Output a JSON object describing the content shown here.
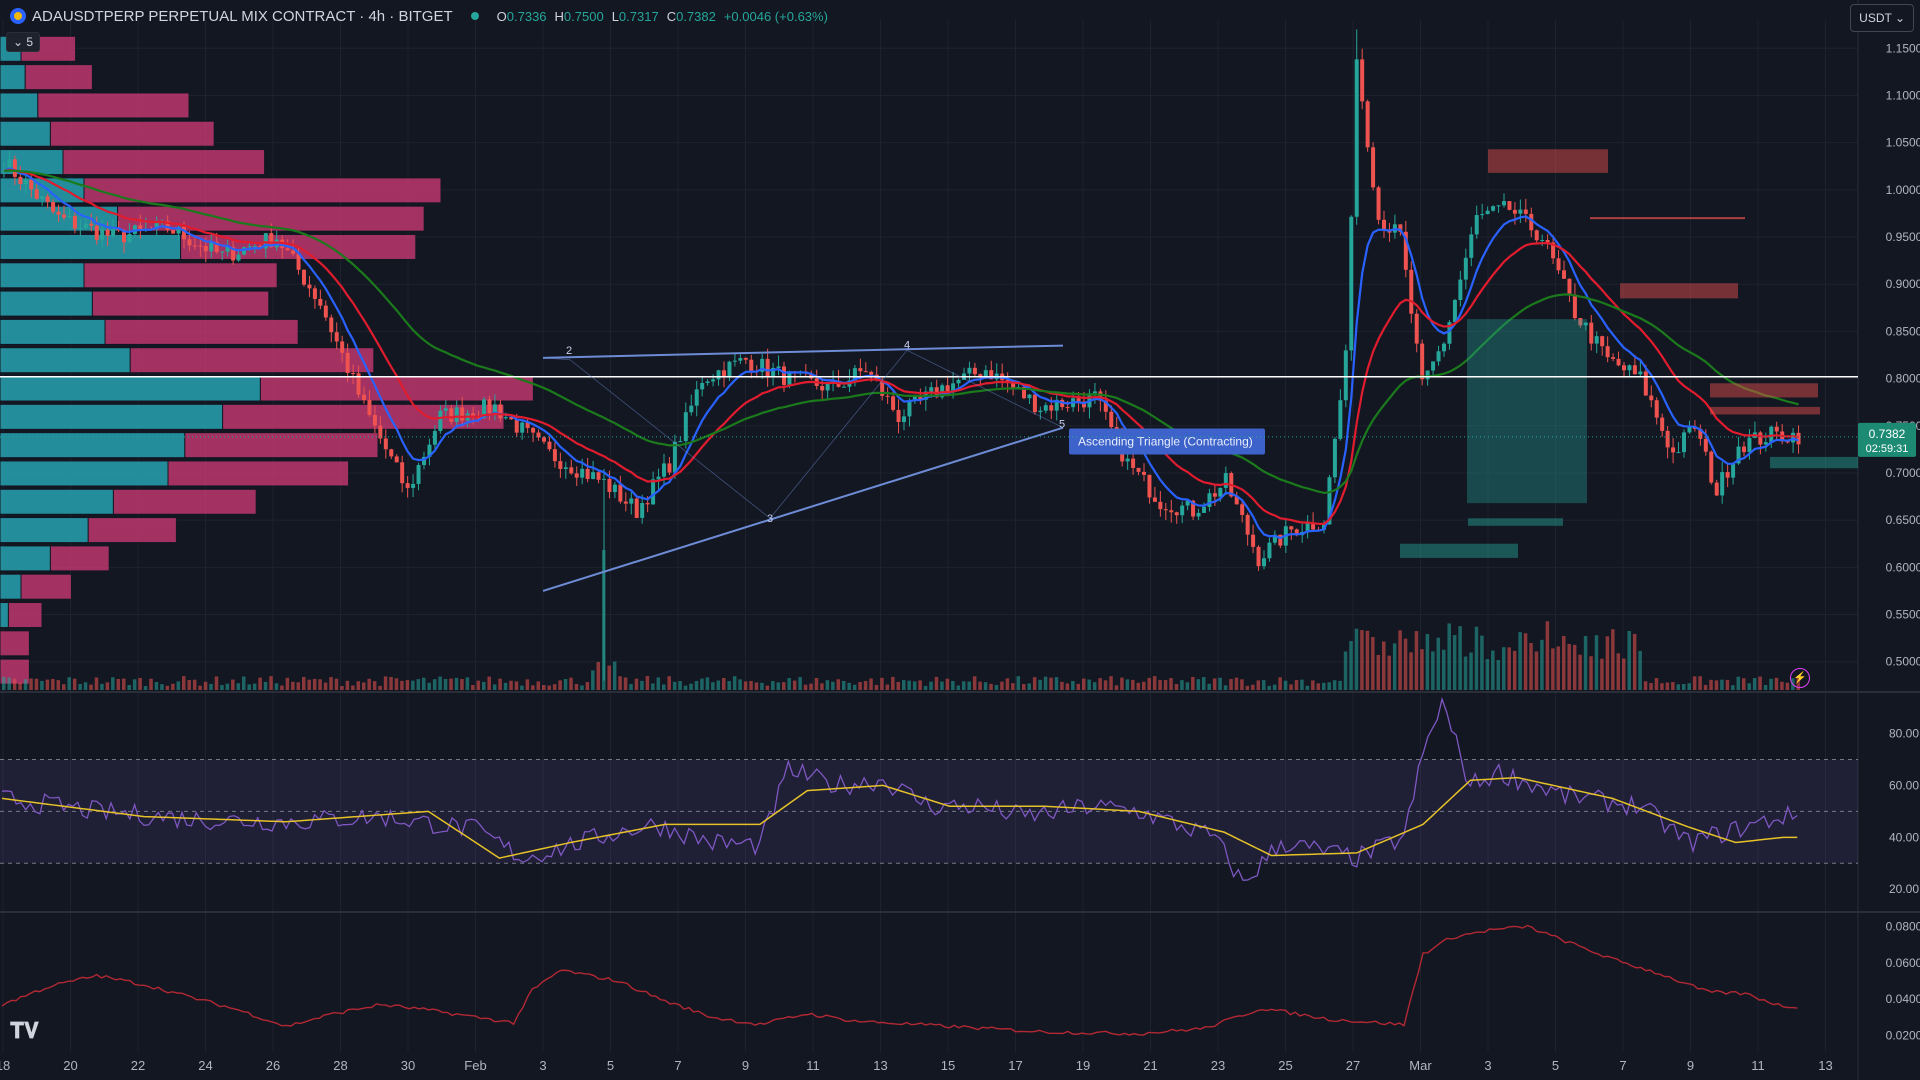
{
  "header": {
    "symbol": "ADAUSDTPERP PERPETUAL MIX CONTRACT · 4h · BITGET",
    "open_label": "O",
    "open": "0.7336",
    "high_label": "H",
    "high": "0.7500",
    "low_label": "L",
    "low": "0.7317",
    "close_label": "C",
    "close": "0.7382",
    "change": "+0.0046 (+0.63%)",
    "collapse_label": "5",
    "currency": "USDT"
  },
  "last_price": {
    "value": "0.7382",
    "countdown": "02:59:31"
  },
  "pattern_label": "Ascending Triangle (Contracting)",
  "pattern_points": [
    "2",
    "3",
    "4",
    "5"
  ],
  "colors": {
    "background": "#131722",
    "up": "#26a69a",
    "down": "#ef5350",
    "ema_fast": "#2962ff",
    "ema_mid": "#e01c2e",
    "ema_slow": "#1b7a1b",
    "rsi": "#7e57c2",
    "rsi_ma": "#e6c229",
    "atr": "#b22833",
    "triangle": "#6e8bd6",
    "level": "#ffffff"
  },
  "chart_data": [
    {
      "type": "candlestick",
      "title": "ADAUSDTPERP PERPETUAL MIX CONTRACT · 4h · BITGET",
      "ylim": [
        0.47,
        1.18
      ],
      "yticks": [
        "1.1500",
        "1.1000",
        "1.0500",
        "1.0000",
        "0.9500",
        "0.9000",
        "0.8500",
        "0.8000",
        "0.7500",
        "0.7000",
        "0.6500",
        "0.6000",
        "0.5500",
        "0.5000"
      ],
      "xticks": [
        "18",
        "20",
        "22",
        "24",
        "26",
        "28",
        "30",
        "Feb",
        "3",
        "5",
        "7",
        "9",
        "11",
        "13",
        "15",
        "17",
        "19",
        "21",
        "23",
        "25",
        "27",
        "Mar",
        "3",
        "5",
        "7",
        "9",
        "11",
        "13"
      ],
      "grid": true,
      "horizontal_line": 0.802,
      "close_key_points": [
        [
          0,
          1.03
        ],
        [
          10,
          0.97
        ],
        [
          20,
          0.95
        ],
        [
          30,
          0.96
        ],
        [
          40,
          0.93
        ],
        [
          50,
          0.95
        ],
        [
          58,
          0.88
        ],
        [
          66,
          0.77
        ],
        [
          74,
          0.68
        ],
        [
          80,
          0.76
        ],
        [
          90,
          0.77
        ],
        [
          100,
          0.72
        ],
        [
          110,
          0.69
        ],
        [
          116,
          0.66
        ],
        [
          122,
          0.71
        ],
        [
          128,
          0.8
        ],
        [
          136,
          0.82
        ],
        [
          144,
          0.8
        ],
        [
          152,
          0.79
        ],
        [
          158,
          0.81
        ],
        [
          164,
          0.76
        ],
        [
          172,
          0.79
        ],
        [
          180,
          0.81
        ],
        [
          190,
          0.77
        ],
        [
          200,
          0.78
        ],
        [
          206,
          0.71
        ],
        [
          212,
          0.67
        ],
        [
          218,
          0.66
        ],
        [
          224,
          0.69
        ],
        [
          230,
          0.61
        ],
        [
          236,
          0.64
        ],
        [
          242,
          0.65
        ],
        [
          246,
          0.82
        ],
        [
          248,
          1.14
        ],
        [
          252,
          0.97
        ],
        [
          256,
          0.95
        ],
        [
          260,
          0.79
        ],
        [
          264,
          0.84
        ],
        [
          270,
          0.97
        ],
        [
          276,
          0.98
        ],
        [
          282,
          0.95
        ],
        [
          288,
          0.87
        ],
        [
          294,
          0.82
        ],
        [
          300,
          0.8
        ],
        [
          306,
          0.72
        ],
        [
          310,
          0.75
        ],
        [
          314,
          0.68
        ],
        [
          318,
          0.73
        ],
        [
          324,
          0.74
        ]
      ],
      "volume_profile": [
        {
          "price": 1.15,
          "buy": 0.05,
          "sell": 0.13
        },
        {
          "price": 1.12,
          "buy": 0.06,
          "sell": 0.16
        },
        {
          "price": 1.09,
          "buy": 0.09,
          "sell": 0.36
        },
        {
          "price": 1.06,
          "buy": 0.12,
          "sell": 0.39
        },
        {
          "price": 1.03,
          "buy": 0.15,
          "sell": 0.48
        },
        {
          "price": 1.0,
          "buy": 0.2,
          "sell": 0.85
        },
        {
          "price": 0.97,
          "buy": 0.28,
          "sell": 0.73
        },
        {
          "price": 0.94,
          "buy": 0.43,
          "sell": 0.56
        },
        {
          "price": 0.91,
          "buy": 0.2,
          "sell": 0.46
        },
        {
          "price": 0.88,
          "buy": 0.22,
          "sell": 0.42
        },
        {
          "price": 0.85,
          "buy": 0.25,
          "sell": 0.46
        },
        {
          "price": 0.82,
          "buy": 0.31,
          "sell": 0.58
        },
        {
          "price": 0.79,
          "buy": 0.62,
          "sell": 0.65
        },
        {
          "price": 0.76,
          "buy": 0.53,
          "sell": 0.67
        },
        {
          "price": 0.73,
          "buy": 0.44,
          "sell": 0.46
        },
        {
          "price": 0.7,
          "buy": 0.4,
          "sell": 0.43
        },
        {
          "price": 0.67,
          "buy": 0.27,
          "sell": 0.34
        },
        {
          "price": 0.64,
          "buy": 0.21,
          "sell": 0.21
        },
        {
          "price": 0.61,
          "buy": 0.12,
          "sell": 0.14
        },
        {
          "price": 0.58,
          "buy": 0.05,
          "sell": 0.12
        },
        {
          "price": 0.55,
          "buy": 0.02,
          "sell": 0.08
        },
        {
          "price": 0.52,
          "buy": 0.0,
          "sell": 0.07
        },
        {
          "price": 0.49,
          "buy": 0.0,
          "sell": 0.07
        }
      ]
    },
    {
      "type": "line",
      "name": "RSI",
      "ylim": [
        12,
        96
      ],
      "yticks": [
        "80.00",
        "60.00",
        "40.00",
        "20.00"
      ],
      "bands": [
        30,
        50,
        70
      ],
      "rsi_key_points": [
        [
          0,
          55
        ],
        [
          20,
          50
        ],
        [
          40,
          47
        ],
        [
          60,
          46
        ],
        [
          80,
          48
        ],
        [
          100,
          43
        ],
        [
          110,
          32
        ],
        [
          116,
          35
        ],
        [
          130,
          42
        ],
        [
          138,
          45
        ],
        [
          150,
          38
        ],
        [
          160,
          37
        ],
        [
          166,
          66
        ],
        [
          176,
          60
        ],
        [
          186,
          62
        ],
        [
          196,
          52
        ],
        [
          206,
          52
        ],
        [
          216,
          48
        ],
        [
          230,
          52
        ],
        [
          240,
          50
        ],
        [
          256,
          40
        ],
        [
          262,
          22
        ],
        [
          270,
          38
        ],
        [
          286,
          32
        ],
        [
          296,
          40
        ],
        [
          300,
          72
        ],
        [
          304,
          92
        ],
        [
          310,
          60
        ],
        [
          316,
          65
        ],
        [
          330,
          56
        ],
        [
          346,
          52
        ],
        [
          356,
          38
        ],
        [
          366,
          43
        ],
        [
          376,
          48
        ]
      ],
      "rsi_ma_key_points": [
        [
          0,
          55
        ],
        [
          30,
          48
        ],
        [
          60,
          46
        ],
        [
          90,
          50
        ],
        [
          105,
          32
        ],
        [
          120,
          38
        ],
        [
          140,
          45
        ],
        [
          160,
          45
        ],
        [
          170,
          58
        ],
        [
          186,
          60
        ],
        [
          200,
          52
        ],
        [
          220,
          52
        ],
        [
          240,
          50
        ],
        [
          258,
          42
        ],
        [
          268,
          33
        ],
        [
          286,
          34
        ],
        [
          300,
          45
        ],
        [
          310,
          62
        ],
        [
          320,
          63
        ],
        [
          340,
          55
        ],
        [
          356,
          44
        ],
        [
          366,
          38
        ],
        [
          376,
          40
        ]
      ]
    },
    {
      "type": "line",
      "name": "ATR",
      "ylim": [
        0.012,
        0.088
      ],
      "yticks": [
        "0.0800",
        "0.0600",
        "0.0400",
        "0.0200"
      ],
      "atr_key_points": [
        [
          0,
          0.037
        ],
        [
          10,
          0.047
        ],
        [
          20,
          0.053
        ],
        [
          30,
          0.048
        ],
        [
          40,
          0.041
        ],
        [
          50,
          0.034
        ],
        [
          60,
          0.025
        ],
        [
          70,
          0.032
        ],
        [
          80,
          0.037
        ],
        [
          90,
          0.034
        ],
        [
          108,
          0.027
        ],
        [
          112,
          0.045
        ],
        [
          118,
          0.056
        ],
        [
          130,
          0.05
        ],
        [
          140,
          0.039
        ],
        [
          150,
          0.03
        ],
        [
          160,
          0.026
        ],
        [
          170,
          0.032
        ],
        [
          180,
          0.028
        ],
        [
          200,
          0.025
        ],
        [
          220,
          0.022
        ],
        [
          240,
          0.021
        ],
        [
          254,
          0.024
        ],
        [
          266,
          0.035
        ],
        [
          280,
          0.029
        ],
        [
          296,
          0.026
        ],
        [
          300,
          0.065
        ],
        [
          306,
          0.074
        ],
        [
          314,
          0.078
        ],
        [
          322,
          0.08
        ],
        [
          330,
          0.072
        ],
        [
          340,
          0.062
        ],
        [
          350,
          0.054
        ],
        [
          360,
          0.044
        ],
        [
          368,
          0.043
        ],
        [
          376,
          0.036
        ]
      ]
    }
  ]
}
